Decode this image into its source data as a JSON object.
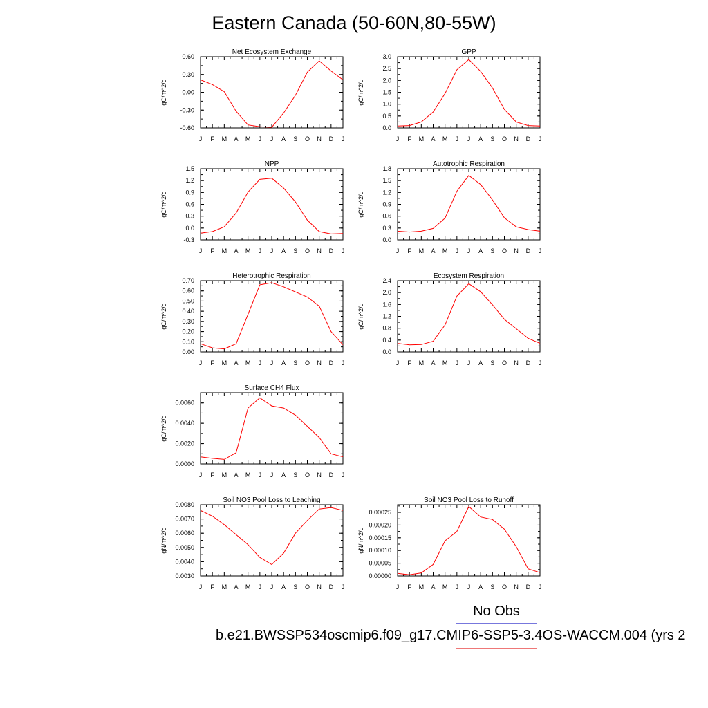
{
  "title": "Eastern Canada (50-60N,80-55W)",
  "legend": {
    "no_obs": "No Obs",
    "case": "b.e21.BWSSP534oscmip6.f09_g17.CMIP6-SSP5-3.4OS-WACCM.004 (yrs 2"
  },
  "colors": {
    "model_line": "#ff0000",
    "obs_line": "#7777dd",
    "case_line": "#ee7777"
  },
  "chart_data": [
    {
      "type": "line",
      "title": "Net Ecosystem Exchange",
      "ylabel": "gC/m^2/d",
      "categories": [
        "J",
        "F",
        "M",
        "A",
        "M",
        "J",
        "J",
        "A",
        "S",
        "O",
        "N",
        "D",
        "J"
      ],
      "ylim": [
        -0.6,
        0.6
      ],
      "yticks": [
        "0.60",
        "0.30",
        "0.00",
        "-0.30",
        "-0.60"
      ],
      "values": [
        0.21,
        0.13,
        0.01,
        -0.32,
        -0.55,
        -0.58,
        -0.59,
        -0.35,
        -0.05,
        0.34,
        0.53,
        0.36,
        0.21
      ]
    },
    {
      "type": "line",
      "title": "GPP",
      "ylabel": "gC/m^2/d",
      "categories": [
        "J",
        "F",
        "M",
        "A",
        "M",
        "J",
        "J",
        "A",
        "S",
        "O",
        "N",
        "D",
        "J"
      ],
      "ylim": [
        0,
        3.0
      ],
      "yticks": [
        "3.0",
        "2.5",
        "2.0",
        "1.5",
        "1.0",
        "0.5",
        "0.0"
      ],
      "values": [
        0.08,
        0.1,
        0.25,
        0.67,
        1.45,
        2.45,
        2.88,
        2.38,
        1.68,
        0.78,
        0.25,
        0.1,
        0.08
      ]
    },
    {
      "type": "line",
      "title": "NPP",
      "ylabel": "gC/m^2/d",
      "categories": [
        "J",
        "F",
        "M",
        "A",
        "M",
        "J",
        "J",
        "A",
        "S",
        "O",
        "N",
        "D",
        "J"
      ],
      "ylim": [
        -0.3,
        1.5
      ],
      "yticks": [
        "1.5",
        "1.2",
        "0.9",
        "0.6",
        "0.3",
        "0.0",
        "-0.3"
      ],
      "values": [
        -0.13,
        -0.09,
        0.03,
        0.38,
        0.91,
        1.23,
        1.26,
        1.01,
        0.66,
        0.2,
        -0.09,
        -0.15,
        -0.14
      ]
    },
    {
      "type": "line",
      "title": "Autotrophic Respiration",
      "ylabel": "gC/m^2/d",
      "categories": [
        "J",
        "F",
        "M",
        "A",
        "M",
        "J",
        "J",
        "A",
        "S",
        "O",
        "N",
        "D",
        "J"
      ],
      "ylim": [
        0,
        1.8
      ],
      "yticks": [
        "1.8",
        "1.5",
        "1.2",
        "0.9",
        "0.6",
        "0.3",
        "0.0"
      ],
      "values": [
        0.22,
        0.2,
        0.22,
        0.29,
        0.55,
        1.23,
        1.63,
        1.4,
        1.01,
        0.56,
        0.33,
        0.26,
        0.22
      ]
    },
    {
      "type": "line",
      "title": "Heterotrophic Respiration",
      "ylabel": "gC/m^2/d",
      "categories": [
        "J",
        "F",
        "M",
        "A",
        "M",
        "J",
        "J",
        "A",
        "S",
        "O",
        "N",
        "D",
        "J"
      ],
      "ylim": [
        0,
        0.7
      ],
      "yticks": [
        "0.70",
        "0.60",
        "0.50",
        "0.40",
        "0.30",
        "0.20",
        "0.10",
        "0.00"
      ],
      "values": [
        0.08,
        0.04,
        0.03,
        0.08,
        0.37,
        0.66,
        0.68,
        0.64,
        0.59,
        0.54,
        0.45,
        0.2,
        0.07
      ]
    },
    {
      "type": "line",
      "title": "Ecosystem Respiration",
      "ylabel": "gC/m^2/d",
      "categories": [
        "J",
        "F",
        "M",
        "A",
        "M",
        "J",
        "J",
        "A",
        "S",
        "O",
        "N",
        "D",
        "J"
      ],
      "ylim": [
        0,
        2.4
      ],
      "yticks": [
        "2.4",
        "2.0",
        "1.6",
        "1.2",
        "0.8",
        "0.4",
        "0.0"
      ],
      "values": [
        0.29,
        0.24,
        0.25,
        0.36,
        0.91,
        1.88,
        2.3,
        2.03,
        1.59,
        1.1,
        0.78,
        0.46,
        0.29
      ]
    },
    {
      "type": "line",
      "title": "Surface CH4 Flux",
      "ylabel": "gC/m^2/d",
      "categories": [
        "J",
        "F",
        "M",
        "A",
        "M",
        "J",
        "J",
        "A",
        "S",
        "O",
        "N",
        "D",
        "J"
      ],
      "ylim": [
        0,
        0.007
      ],
      "yticks": [
        "0.0060",
        "0.0040",
        "0.0020",
        "0.0000"
      ],
      "yticks_values": [
        0.006,
        0.004,
        0.002,
        0.0
      ],
      "values": [
        0.0007,
        0.00055,
        0.00045,
        0.0011,
        0.0055,
        0.0065,
        0.0057,
        0.0055,
        0.0048,
        0.0037,
        0.0026,
        0.001,
        0.0007
      ]
    },
    {
      "type": "line",
      "title": "Soil NO3 Pool Loss to Leaching",
      "ylabel": "gN/m^2/d",
      "categories": [
        "J",
        "F",
        "M",
        "A",
        "M",
        "J",
        "J",
        "A",
        "S",
        "O",
        "N",
        "D",
        "J"
      ],
      "ylim": [
        0.003,
        0.008
      ],
      "yticks": [
        "0.0080",
        "0.0070",
        "0.0060",
        "0.0050",
        "0.0040",
        "0.0030"
      ],
      "values": [
        0.0076,
        0.0072,
        0.0066,
        0.0059,
        0.0052,
        0.0043,
        0.0038,
        0.0046,
        0.006,
        0.0069,
        0.0077,
        0.0078,
        0.0076
      ]
    },
    {
      "type": "line",
      "title": "Soil NO3 Pool Loss to Runoff",
      "ylabel": "gN/m^2/d",
      "categories": [
        "J",
        "F",
        "M",
        "A",
        "M",
        "J",
        "J",
        "A",
        "S",
        "O",
        "N",
        "D",
        "J"
      ],
      "ylim": [
        0,
        0.00028
      ],
      "yticks": [
        "0.00025",
        "0.00020",
        "0.00015",
        "0.00010",
        "0.00005",
        "0.00000"
      ],
      "yticks_values": [
        0.00025,
        0.0002,
        0.00015,
        0.0001,
        5e-05,
        0.0
      ],
      "values": [
        1e-05,
        5e-06,
        1.2e-05,
        4.5e-05,
        0.000138,
        0.000175,
        0.000273,
        0.000232,
        0.000222,
        0.000184,
        0.000115,
        2.8e-05,
        1.3e-05
      ]
    }
  ]
}
